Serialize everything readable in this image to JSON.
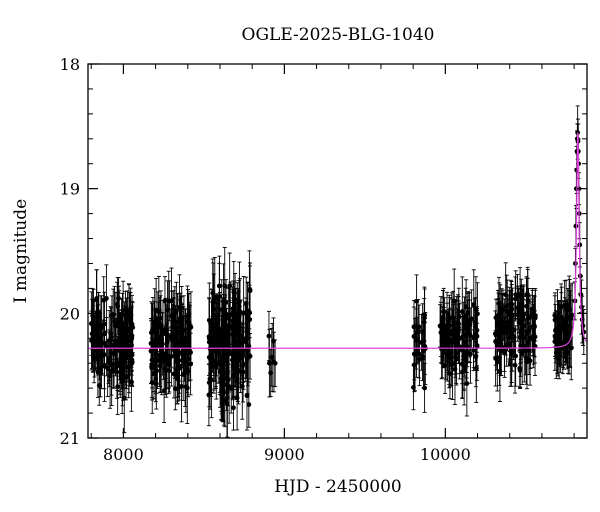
{
  "chart_data": {
    "type": "scatter",
    "title": "OGLE-2025-BLG-1040",
    "xlabel": "HJD - 2450000",
    "ylabel": "I magnitude",
    "xlim": [
      7780,
      10880
    ],
    "ylim": [
      21,
      18
    ],
    "y_inverted": true,
    "x_ticks": [
      8000,
      9000,
      10000
    ],
    "x_tick_labels": [
      "8000",
      "9000",
      "10000"
    ],
    "y_ticks": [
      18,
      19,
      20,
      21
    ],
    "y_tick_labels": [
      "18",
      "19",
      "20",
      "21"
    ],
    "grid": false,
    "colors": {
      "data": "#000000",
      "model": "#e040e0"
    },
    "series": [
      {
        "type": "scatter-with-errorbars",
        "seasons": [
          {
            "x_range": [
              7800,
              8060
            ],
            "mag_range": [
              19.88,
              20.85
            ],
            "mean_mag": 20.24,
            "mag_err": 0.22,
            "approx_points": 140
          },
          {
            "x_range": [
              8170,
              8420
            ],
            "mag_range": [
              19.9,
              20.8
            ],
            "mean_mag": 20.23,
            "mag_err": 0.22,
            "approx_points": 140
          },
          {
            "x_range": [
              8530,
              8790
            ],
            "mag_range": [
              19.78,
              20.92
            ],
            "mean_mag": 20.25,
            "mag_err": 0.25,
            "approx_points": 180
          },
          {
            "x_range": [
              8900,
              8950
            ],
            "mag_range": [
              20.0,
              20.72
            ],
            "mean_mag": 20.3,
            "mag_err": 0.25,
            "approx_points": 8
          },
          {
            "x_range": [
              9800,
              9880
            ],
            "mag_range": [
              19.85,
              20.6
            ],
            "mean_mag": 20.2,
            "mag_err": 0.25,
            "approx_points": 25
          },
          {
            "x_range": [
              9960,
              10200
            ],
            "mag_range": [
              19.9,
              20.65
            ],
            "mean_mag": 20.2,
            "mag_err": 0.22,
            "approx_points": 110
          },
          {
            "x_range": [
              10310,
              10560
            ],
            "mag_range": [
              19.85,
              20.6
            ],
            "mean_mag": 20.15,
            "mag_err": 0.2,
            "approx_points": 120
          },
          {
            "x_range": [
              10680,
              10790
            ],
            "mag_range": [
              19.9,
              20.4
            ],
            "mean_mag": 20.15,
            "mag_err": 0.2,
            "approx_points": 60
          }
        ],
        "event": {
          "peak_x": 10825,
          "peak_mag": 18.6,
          "baseline_mag": 20.28,
          "rise_points": [
            [
              10805,
              19.9
            ],
            [
              10808,
              19.6
            ],
            [
              10811,
              19.3
            ],
            [
              10814,
              19.0
            ],
            [
              10816,
              18.85
            ],
            [
              10818,
              18.7
            ],
            [
              10820,
              18.6
            ],
            [
              10822,
              18.55
            ],
            [
              10824,
              18.62
            ],
            [
              10826,
              18.7
            ],
            [
              10828,
              18.8
            ],
            [
              10830,
              19.0
            ],
            [
              10832,
              19.2
            ],
            [
              10835,
              19.45
            ],
            [
              10838,
              19.7
            ],
            [
              10842,
              19.85
            ],
            [
              10846,
              19.95
            ],
            [
              10850,
              20.05
            ],
            [
              10855,
              20.1
            ],
            [
              10860,
              20.15
            ]
          ]
        }
      },
      {
        "type": "model-line",
        "baseline_mag": 20.28,
        "peak_x": 10823,
        "peak_mag": 18.55,
        "width_days": 14
      }
    ]
  }
}
